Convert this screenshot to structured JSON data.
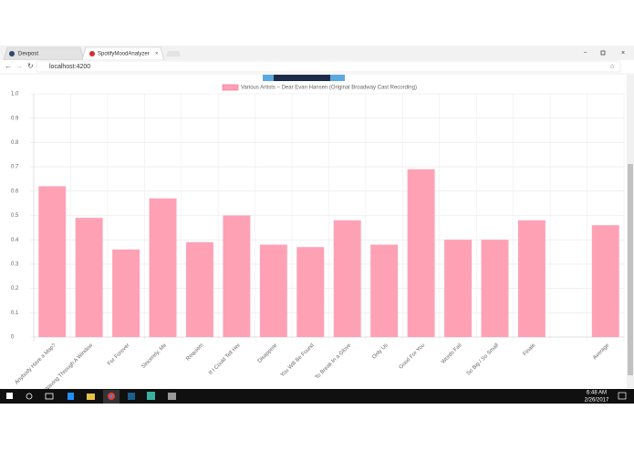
{
  "browser": {
    "tabs": [
      "Devpost",
      "SpotifyMoodAnalyzer"
    ],
    "url": "localhost:4200"
  },
  "taskbar": {
    "time": "6:48 AM",
    "date": "2/26/2017"
  },
  "chart_data": {
    "type": "bar",
    "legend": "Various Artists – Dear Evan Hansen (Original Broadway Cast Recording)",
    "categories": [
      "Anybody Have a Map?",
      "Waving Through A Window",
      "For Forever",
      "Sincerely, Me",
      "Requiem",
      "If I Could Tell Her",
      "Disappear",
      "You Will Be Found",
      "To Break In a Glove",
      "Only Us",
      "Good For You",
      "Words Fail",
      "So Big / So Small",
      "Finale",
      null,
      "Average"
    ],
    "values": [
      0.62,
      0.49,
      0.36,
      0.57,
      0.39,
      0.5,
      0.38,
      0.37,
      0.48,
      0.38,
      0.69,
      0.4,
      0.4,
      0.48,
      null,
      0.46
    ],
    "color": "#ffa1b5",
    "ylim": [
      0,
      1
    ],
    "yticks": [
      0,
      0.1,
      0.2,
      0.3,
      0.4,
      0.5,
      0.6,
      0.7,
      0.8,
      0.9,
      {
        "value": 1,
        "label": "1.0"
      }
    ],
    "grid": true
  }
}
